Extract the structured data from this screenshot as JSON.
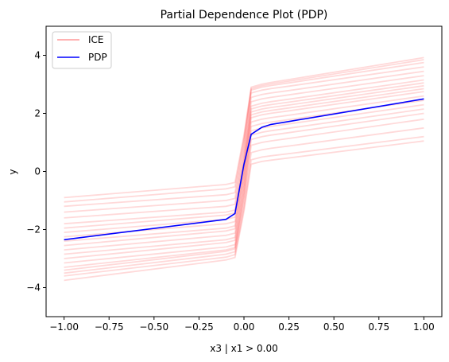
{
  "chart_data": {
    "type": "line",
    "title": "Partial Dependence Plot (PDP)",
    "xlabel": "x3 | x1 > 0.00",
    "ylabel": "y",
    "xlim": [
      -1.1,
      1.1
    ],
    "ylim": [
      -5,
      5
    ],
    "xticks": [
      -1.0,
      -0.75,
      -0.5,
      -0.25,
      0.0,
      0.25,
      0.5,
      0.75,
      1.0
    ],
    "xtick_labels": [
      "−1.00",
      "−0.75",
      "−0.50",
      "−0.25",
      "0.00",
      "0.25",
      "0.50",
      "0.75",
      "1.00"
    ],
    "yticks": [
      -4,
      -2,
      0,
      2,
      4
    ],
    "ytick_labels": [
      "−4",
      "−2",
      "0",
      "2",
      "4"
    ],
    "grid": false,
    "legend": {
      "position": "top-left",
      "entries": [
        {
          "label": "ICE",
          "color": "#ff9999"
        },
        {
          "label": "PDP",
          "color": "#0000ff"
        }
      ]
    },
    "x": [
      -1.0,
      -0.1,
      -0.05,
      0.0,
      0.04,
      0.1,
      0.15,
      0.25,
      1.0
    ],
    "series": [
      {
        "name": "PDP",
        "color": "#0000ff",
        "values": [
          -2.35,
          -1.65,
          -1.45,
          0.25,
          1.28,
          1.52,
          1.62,
          1.72,
          2.5
        ]
      },
      {
        "name": "ICE",
        "color": "#ff0000",
        "opacity": 0.15,
        "lines": [
          {
            "y_left": -3.75,
            "y_right": 1.05,
            "jump_low": -3.05,
            "jump_high": 0.3
          },
          {
            "y_left": -3.6,
            "y_right": 1.2,
            "jump_low": -2.95,
            "jump_high": 0.45
          },
          {
            "y_left": -3.5,
            "y_right": 1.5,
            "jump_low": -2.85,
            "jump_high": 0.7
          },
          {
            "y_left": -3.4,
            "y_right": 1.8,
            "jump_low": -2.75,
            "jump_high": 0.95
          },
          {
            "y_left": -3.3,
            "y_right": 2.0,
            "jump_low": -2.7,
            "jump_high": 1.15
          },
          {
            "y_left": -3.15,
            "y_right": 2.15,
            "jump_low": -2.6,
            "jump_high": 1.3
          },
          {
            "y_left": -3.0,
            "y_right": 2.3,
            "jump_low": -2.45,
            "jump_high": 1.45
          },
          {
            "y_left": -2.85,
            "y_right": 2.45,
            "jump_low": -2.35,
            "jump_high": 1.6
          },
          {
            "y_left": -2.7,
            "y_right": 2.6,
            "jump_low": -2.2,
            "jump_high": 1.75
          },
          {
            "y_left": -2.55,
            "y_right": 2.75,
            "jump_low": -2.05,
            "jump_high": 1.9
          },
          {
            "y_left": -2.4,
            "y_right": 2.85,
            "jump_low": -1.95,
            "jump_high": 2.0
          },
          {
            "y_left": -2.25,
            "y_right": 2.95,
            "jump_low": -1.8,
            "jump_high": 2.1
          },
          {
            "y_left": -2.1,
            "y_right": 3.05,
            "jump_low": -1.65,
            "jump_high": 2.2
          },
          {
            "y_left": -1.95,
            "y_right": 3.15,
            "jump_low": -1.5,
            "jump_high": 2.3
          },
          {
            "y_left": -1.8,
            "y_right": 3.3,
            "jump_low": -1.4,
            "jump_high": 2.45
          },
          {
            "y_left": -1.6,
            "y_right": 3.45,
            "jump_low": -1.2,
            "jump_high": 2.6
          },
          {
            "y_left": -1.4,
            "y_right": 3.6,
            "jump_low": -1.0,
            "jump_high": 2.75
          },
          {
            "y_left": -1.2,
            "y_right": 3.75,
            "jump_low": -0.8,
            "jump_high": 2.85
          },
          {
            "y_left": -1.05,
            "y_right": 3.85,
            "jump_low": -0.6,
            "jump_high": 2.9
          },
          {
            "y_left": -0.9,
            "y_right": 3.92,
            "jump_low": -0.45,
            "jump_high": 2.95
          }
        ]
      }
    ]
  }
}
